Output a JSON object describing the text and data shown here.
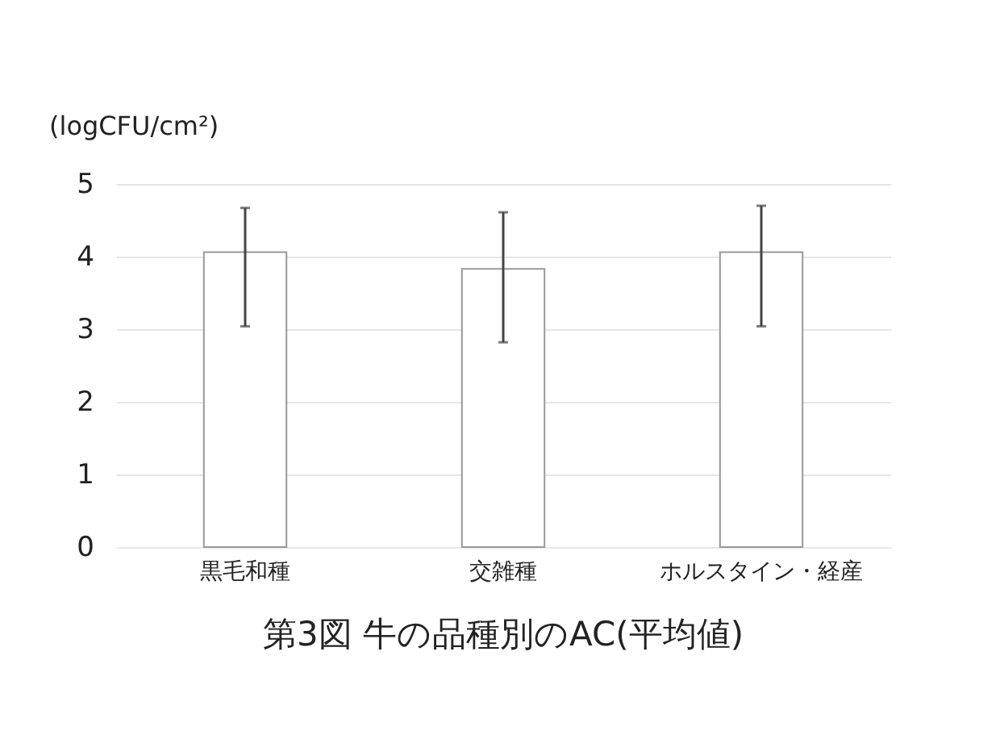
{
  "chart_data": {
    "type": "bar",
    "title": "第3図  牛の品種別のAC(平均値)",
    "ylabel": "(logCFU/cm²)",
    "categories": [
      "黒毛和種",
      "交雑種",
      "ホルスタイン・経産"
    ],
    "values": [
      4.06,
      3.83,
      4.06
    ],
    "errors": [
      [
        3.04,
        4.67
      ],
      [
        2.82,
        4.61
      ],
      [
        3.04,
        4.7
      ]
    ],
    "color": "#ffffff",
    "ylim": [
      0,
      5
    ],
    "yticks": [
      0,
      1,
      2,
      3,
      4,
      5
    ],
    "grid": "y"
  }
}
